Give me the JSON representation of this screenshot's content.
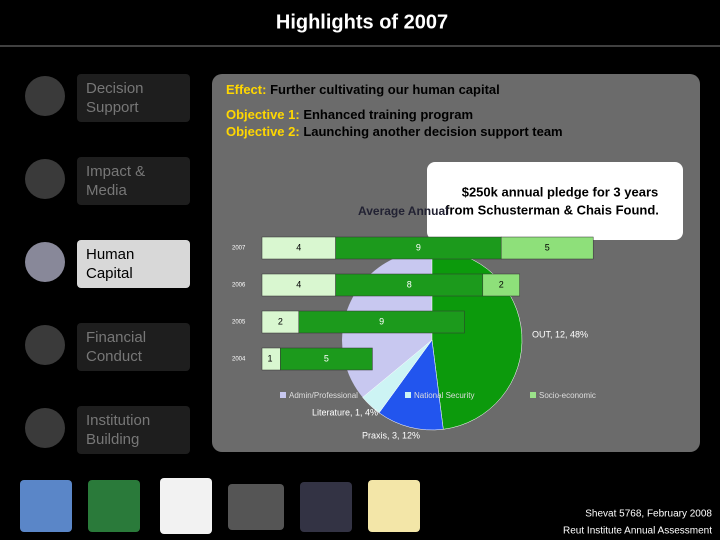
{
  "header": {
    "title": "Highlights of 2007"
  },
  "sidebar": {
    "items": [
      "Decision Support",
      "Impact & Media",
      "Human Capital",
      "Financial Conduct",
      "Institution Building"
    ],
    "active": 2
  },
  "panel": {
    "effect": {
      "label": "Effect:",
      "text": "Further cultivating our human capital"
    },
    "objectives": [
      {
        "label": "Objective 1:",
        "text": "Enhanced training program"
      },
      {
        "label": "Objective 2:",
        "text": "Launching another decision support team"
      }
    ],
    "callout": [
      "$250k annual pledge for 3 years",
      "from Schusterman & Chais Found."
    ],
    "chart_title": "Average Annual",
    "bars": [
      {
        "year": "2007",
        "values": [
          4,
          9,
          5
        ]
      },
      {
        "year": "2006",
        "values": [
          4,
          8,
          2
        ]
      },
      {
        "year": "2005",
        "values": [
          2,
          9
        ]
      },
      {
        "year": "2004",
        "values": [
          1,
          5
        ]
      }
    ],
    "bar_colors": [
      "#d9f7d0",
      "#1c9a1c",
      "#8ee07a"
    ],
    "pie": [
      {
        "label": "OUT, 12, 48%",
        "percent": 48,
        "color": "#0c9a0c"
      },
      {
        "label": "Praxis, 3, 12%",
        "percent": 12,
        "color": "#2255ee"
      },
      {
        "label": "Literature, 1, 4%",
        "percent": 4,
        "color": "#cdf4f4"
      }
    ],
    "legend": [
      {
        "name": "Admin/Professional",
        "color": "#c8c8f0"
      },
      {
        "name": "National Security",
        "color": "#cdf4f4"
      },
      {
        "name": "Socio-economic",
        "color": "#9be28a"
      }
    ]
  },
  "footer": [
    "Shevat 5768, February 2008",
    "Reut Institute Annual Assessment"
  ]
}
